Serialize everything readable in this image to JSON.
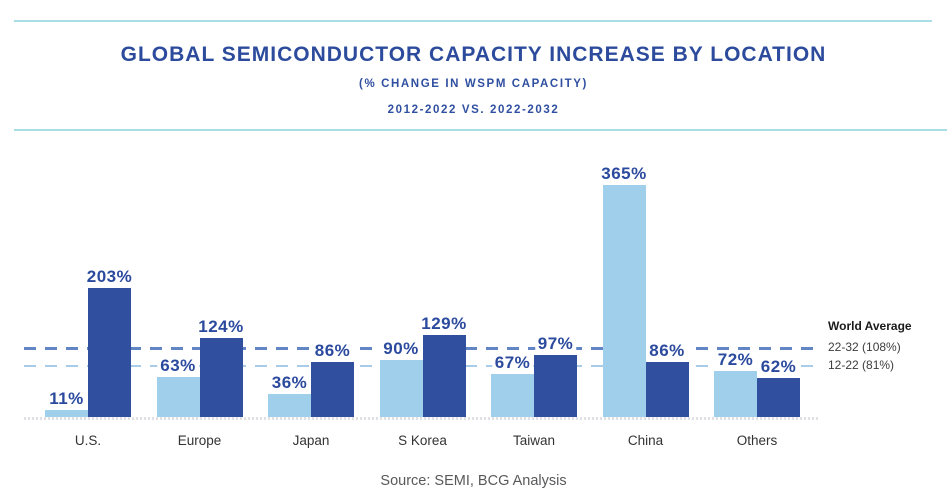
{
  "header": {
    "title": "GLOBAL SEMICONDUCTOR CAPACITY INCREASE BY LOCATION",
    "subtitle1": "(% CHANGE IN WSPM CAPACITY)",
    "subtitle2": "2012-2022 VS. 2022-2032"
  },
  "chart_data": {
    "type": "bar",
    "title": "Global Semiconductor Capacity Increase by Location",
    "categories": [
      "U.S.",
      "Europe",
      "Japan",
      "S Korea",
      "Taiwan",
      "China",
      "Others"
    ],
    "series": [
      {
        "name": "2012-2022",
        "color": "#A0CFEC",
        "values": [
          11,
          63,
          36,
          90,
          67,
          365,
          72
        ]
      },
      {
        "name": "2022-2032",
        "color": "#30509F",
        "values": [
          203,
          124,
          86,
          129,
          97,
          86,
          62
        ]
      }
    ],
    "value_suffix": "%",
    "ylim": [
      0,
      380
    ],
    "grid": false,
    "legend_position": "right",
    "legend_title": "World Average",
    "reference_lines": [
      {
        "label": "22-32 (108%)",
        "value": 108,
        "color": "#6185C5",
        "style": "dashed"
      },
      {
        "label": "12-22 (81%)",
        "value": 81,
        "color": "#A8CCE8",
        "style": "dashed"
      }
    ]
  },
  "footer": {
    "source": "Source: SEMI, BCG Analysis"
  },
  "colors": {
    "title_blue": "#2C4B9C",
    "value_label_blue": "#2B4A9E",
    "bar_light_blue": "#A0CFEC",
    "bar_dark_blue": "#30509F",
    "dashed_dark": "#6185C5",
    "dashed_light": "#A8CCE8",
    "divider_cyan": "#AADEE7",
    "axis_gray": "#E0E0E5",
    "text_gray": "#58595B"
  }
}
